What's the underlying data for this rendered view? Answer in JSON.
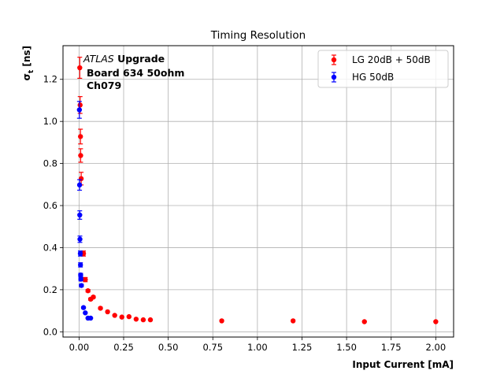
{
  "chart_data": {
    "type": "scatter",
    "title": "Timing Resolution",
    "xlabel": "Input Current [mA]",
    "ylabel_main": "σ",
    "ylabel_sub": "t",
    "ylabel_unit": " [ns]",
    "xlim": [
      -0.09,
      2.1
    ],
    "ylim": [
      -0.025,
      1.36
    ],
    "xticks": [
      0.0,
      0.25,
      0.5,
      0.75,
      1.0,
      1.25,
      1.5,
      1.75,
      2.0
    ],
    "xtick_labels": [
      "0.00",
      "0.25",
      "0.50",
      "0.75",
      "1.00",
      "1.25",
      "1.50",
      "1.75",
      "2.00"
    ],
    "yticks": [
      0.0,
      0.2,
      0.4,
      0.6,
      0.8,
      1.0,
      1.2
    ],
    "ytick_labels": [
      "0.0",
      "0.2",
      "0.4",
      "0.6",
      "0.8",
      "1.0",
      "1.2"
    ],
    "grid": true,
    "legend_position": "top-right",
    "annotation": {
      "italic": "ATLAS",
      "bold": " Upgrade",
      "line2": "Board 634 50ohm",
      "line3": "Ch079"
    },
    "series": [
      {
        "name": "LG 20dB + 50dB",
        "color": "#ff0000",
        "points": [
          {
            "x": 0.004,
            "y": 1.255,
            "err": 0.05
          },
          {
            "x": 0.006,
            "y": 1.078,
            "err": 0.04
          },
          {
            "x": 0.008,
            "y": 0.928,
            "err": 0.035
          },
          {
            "x": 0.009,
            "y": 0.838,
            "err": 0.032
          },
          {
            "x": 0.012,
            "y": 0.728,
            "err": 0.03
          },
          {
            "x": 0.025,
            "y": 0.372,
            "err": 0.012
          },
          {
            "x": 0.035,
            "y": 0.248,
            "err": 0.01
          },
          {
            "x": 0.05,
            "y": 0.195,
            "err": 0.006
          },
          {
            "x": 0.065,
            "y": 0.155,
            "err": 0.005
          },
          {
            "x": 0.08,
            "y": 0.165,
            "err": 0.005
          },
          {
            "x": 0.12,
            "y": 0.112,
            "err": 0.004
          },
          {
            "x": 0.16,
            "y": 0.095,
            "err": 0.003
          },
          {
            "x": 0.2,
            "y": 0.078,
            "err": 0.003
          },
          {
            "x": 0.24,
            "y": 0.07,
            "err": 0.003
          },
          {
            "x": 0.28,
            "y": 0.072,
            "err": 0.003
          },
          {
            "x": 0.32,
            "y": 0.06,
            "err": 0.003
          },
          {
            "x": 0.36,
            "y": 0.057,
            "err": 0.002
          },
          {
            "x": 0.4,
            "y": 0.057,
            "err": 0.002
          },
          {
            "x": 0.8,
            "y": 0.052,
            "err": 0.002
          },
          {
            "x": 1.2,
            "y": 0.052,
            "err": 0.002
          },
          {
            "x": 1.6,
            "y": 0.048,
            "err": 0.002
          },
          {
            "x": 2.0,
            "y": 0.048,
            "err": 0.002
          }
        ]
      },
      {
        "name": "HG 50dB",
        "color": "#0000ff",
        "points": [
          {
            "x": 0.002,
            "y": 1.055,
            "err": 0.04
          },
          {
            "x": 0.003,
            "y": 0.698,
            "err": 0.025
          },
          {
            "x": 0.004,
            "y": 0.555,
            "err": 0.02
          },
          {
            "x": 0.005,
            "y": 0.44,
            "err": 0.015
          },
          {
            "x": 0.007,
            "y": 0.372,
            "err": 0.012
          },
          {
            "x": 0.008,
            "y": 0.318,
            "err": 0.01
          },
          {
            "x": 0.009,
            "y": 0.27,
            "err": 0.008
          },
          {
            "x": 0.01,
            "y": 0.25,
            "err": 0.008
          },
          {
            "x": 0.013,
            "y": 0.22,
            "err": 0.006
          },
          {
            "x": 0.025,
            "y": 0.115,
            "err": 0.004
          },
          {
            "x": 0.035,
            "y": 0.09,
            "err": 0.003
          },
          {
            "x": 0.05,
            "y": 0.065,
            "err": 0.002
          },
          {
            "x": 0.065,
            "y": 0.065,
            "err": 0.002
          }
        ]
      }
    ]
  }
}
